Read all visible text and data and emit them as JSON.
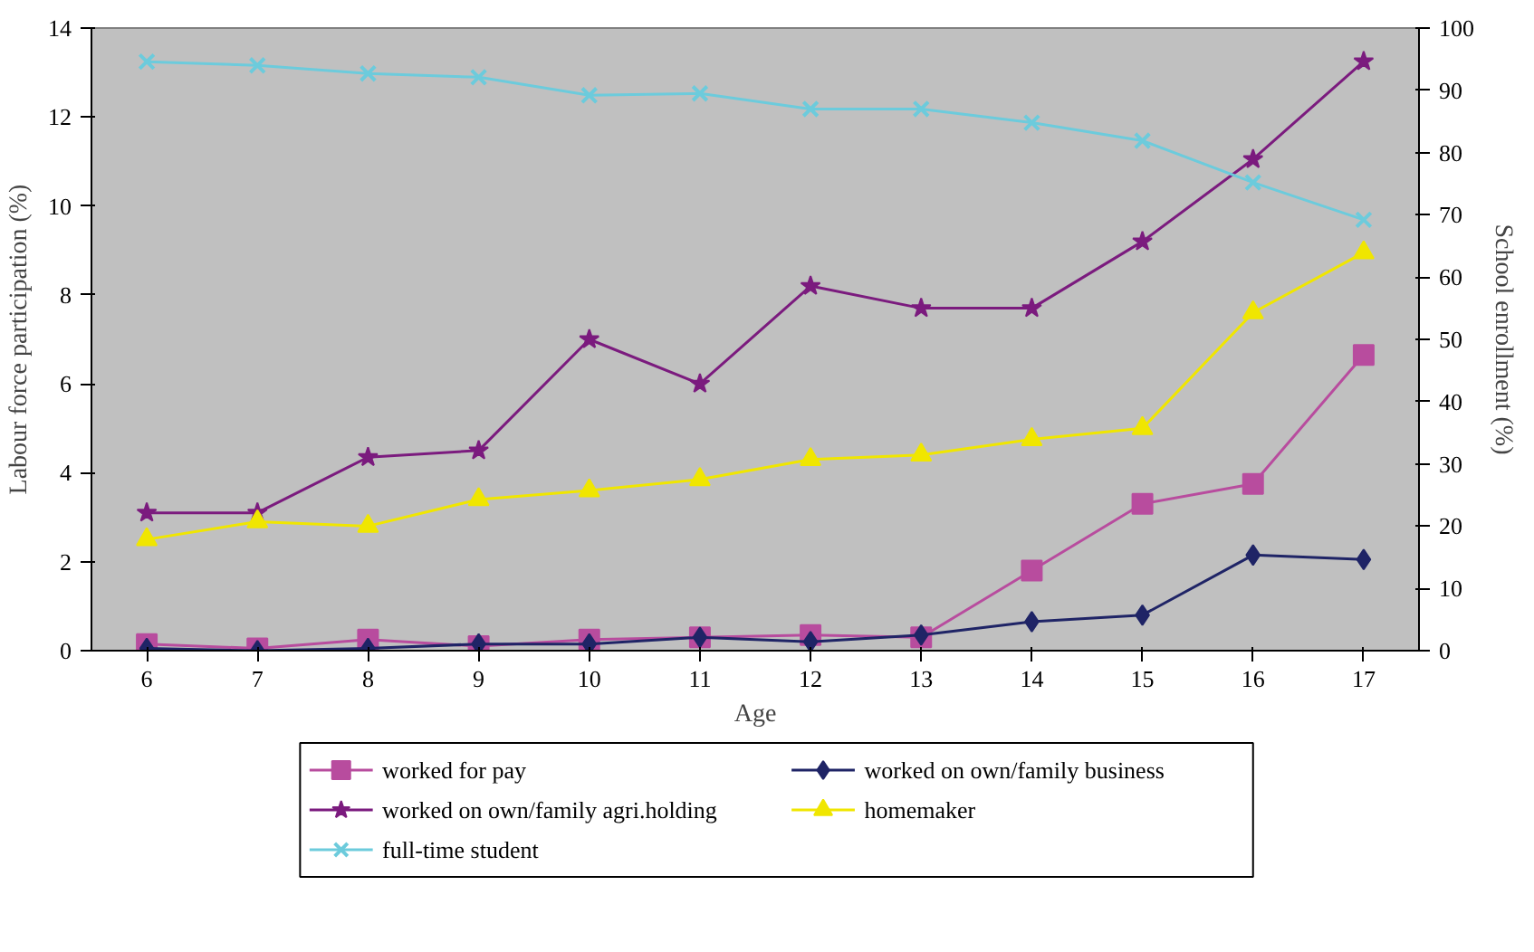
{
  "chart_data": {
    "type": "line",
    "xlabel": "Age",
    "ylabel": "Labour force participation (%)",
    "y2label": "School enrollment (%)",
    "categories": [
      "6",
      "7",
      "8",
      "9",
      "10",
      "11",
      "12",
      "13",
      "14",
      "15",
      "16",
      "17"
    ],
    "ylim": [
      0,
      14
    ],
    "yticks": [
      0,
      2,
      4,
      6,
      8,
      10,
      12,
      14
    ],
    "y2lim": [
      0,
      100
    ],
    "y2ticks": [
      0,
      10,
      20,
      30,
      40,
      50,
      60,
      70,
      80,
      90,
      100
    ],
    "grid": false,
    "legend": "bottom",
    "series": [
      {
        "name": "worked for pay",
        "color": "#b84c9e",
        "marker": "square",
        "values": [
          0.15,
          0.05,
          0.25,
          0.1,
          0.25,
          0.3,
          0.35,
          0.3,
          1.8,
          3.3,
          3.75,
          6.65
        ]
      },
      {
        "name": "worked on own/family business",
        "color": "#1f2466",
        "marker": "diamond",
        "values": [
          0.05,
          0,
          0.05,
          0.15,
          0.15,
          0.3,
          0.2,
          0.35,
          0.65,
          0.8,
          2.15,
          2.05
        ]
      },
      {
        "name": "worked on own/family agri.holding",
        "color": "#7b1b7e",
        "marker": "star",
        "values": [
          3.1,
          3.1,
          4.35,
          4.5,
          7.0,
          6.0,
          8.2,
          7.7,
          7.7,
          9.2,
          11.05,
          13.25
        ]
      },
      {
        "name": "homemaker",
        "color": "#f0e600",
        "marker": "triangle",
        "values": [
          2.5,
          2.9,
          2.8,
          3.4,
          3.6,
          3.85,
          4.3,
          4.4,
          4.75,
          5.0,
          7.6,
          8.95
        ]
      },
      {
        "name": "full-time student",
        "color": "#6ccbdc",
        "marker": "cross",
        "axis": "y2",
        "values": [
          94.6,
          94.0,
          92.7,
          92.1,
          89.2,
          89.5,
          87.0,
          87.0,
          84.8,
          81.9,
          75.2,
          69.2
        ]
      }
    ]
  }
}
